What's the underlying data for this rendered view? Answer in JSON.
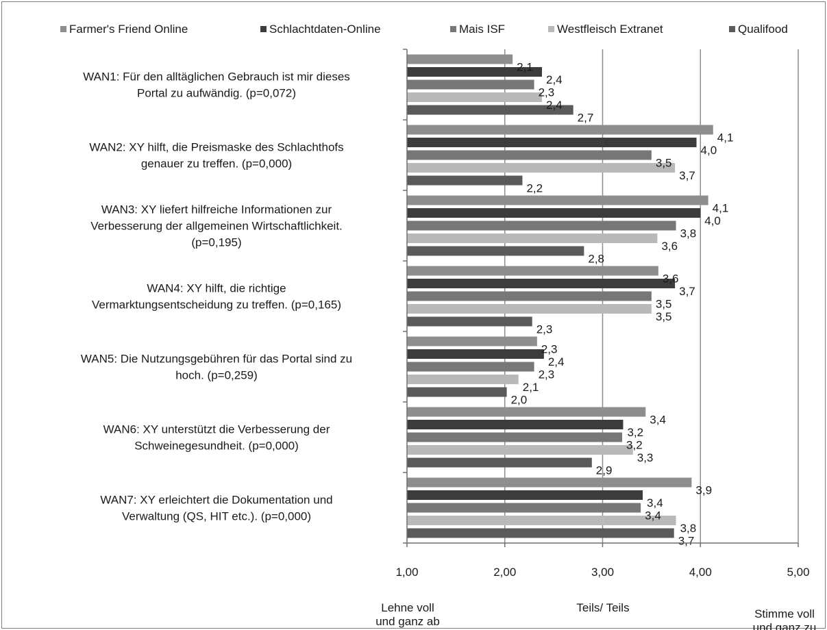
{
  "chart_data": {
    "type": "bar",
    "orientation": "horizontal",
    "title": "",
    "legend_position": "top",
    "grid": true,
    "xlim": [
      1,
      5
    ],
    "x_ticks": [
      "1,00",
      "2,00",
      "3,00",
      "4,00",
      "5,00"
    ],
    "x_anchor_labels": [
      "Lehne voll und ganz ab",
      "Teils/ Teils",
      "Stimme voll und ganz zu"
    ],
    "categories": [
      "WAN1: Für den alltäglichen Gebrauch ist mir dieses Portal zu aufwändig. (p=0,072)",
      "WAN2: XY hilft, die Preismaske des Schlachthofs genauer zu treffen. (p=0,000)",
      "WAN3: XY liefert hilfreiche Informationen zur Verbesserung der allgemeinen Wirtschaftlichkeit. (p=0,195)",
      "WAN4: XY hilft, die richtige Vermarktungsentscheidung zu treffen. (p=0,165)",
      "WAN5: Die Nutzungsgebühren für das Portal sind zu hoch. (p=0,259)",
      "WAN6: XY unterstützt die Verbesserung der Schweinegesundheit. (p=0,000)",
      "WAN7: XY erleichtert die Dokumentation und Verwaltung (QS, HIT etc.). (p=0,000)"
    ],
    "category_lines": [
      [
        "WAN1: Für den alltäglichen Gebrauch ist mir dieses",
        "Portal zu aufwändig. (p=0,072)"
      ],
      [
        "WAN2: XY hilft, die Preismaske des Schlachthofs",
        "genauer zu treffen. (p=0,000)"
      ],
      [
        "WAN3: XY liefert hilfreiche Informationen zur",
        "Verbesserung der allgemeinen Wirtschaftlichkeit.",
        "(p=0,195)"
      ],
      [
        "WAN4: XY hilft, die richtige",
        "Vermarktungsentscheidung zu treffen. (p=0,165)"
      ],
      [
        "WAN5: Die Nutzungsgebühren für das Portal sind zu",
        "hoch. (p=0,259)"
      ],
      [
        "WAN6: XY unterstützt die Verbesserung der",
        "Schweinegesundheit. (p=0,000)"
      ],
      [
        "WAN7: XY erleichtert die Dokumentation und",
        "Verwaltung (QS, HIT etc.). (p=0,000)"
      ]
    ],
    "series": [
      {
        "name": "Farmer's Friend Online",
        "color": "#8e8e8e",
        "values": [
          2.08,
          4.13,
          4.08,
          3.57,
          2.33,
          3.44,
          3.91
        ],
        "labels": [
          "2,1",
          "4,1",
          "4,1",
          "3,6",
          "2,3",
          "3,4",
          "3,9"
        ]
      },
      {
        "name": "Schlachtdaten-Online",
        "color": "#3c3c3c",
        "values": [
          2.38,
          3.96,
          4.0,
          3.74,
          2.4,
          3.21,
          3.41
        ],
        "labels": [
          "2,4",
          "4,0",
          "4,0",
          "3,7",
          "2,4",
          "3,2",
          "3,4"
        ]
      },
      {
        "name": "Mais ISF",
        "color": "#777777",
        "values": [
          2.3,
          3.5,
          3.75,
          3.5,
          2.3,
          3.2,
          3.39
        ],
        "labels": [
          "2,3",
          "3,5",
          "3,8",
          "3,5",
          "2,3",
          "3,2",
          "3,4"
        ]
      },
      {
        "name": "Westfleisch Extranet",
        "color": "#b9b9b9",
        "values": [
          2.38,
          3.74,
          3.56,
          3.5,
          2.14,
          3.31,
          3.75
        ],
        "labels": [
          "2,4",
          "3,7",
          "3,6",
          "3,5",
          "2,1",
          "3,3",
          "3,8"
        ]
      },
      {
        "name": "Qualifood",
        "color": "#5a5a5a",
        "values": [
          2.7,
          2.18,
          2.81,
          2.28,
          2.02,
          2.89,
          3.73
        ],
        "labels": [
          "2,7",
          "2,2",
          "2,8",
          "2,3",
          "2,0",
          "2,9",
          "3,7"
        ]
      }
    ]
  }
}
